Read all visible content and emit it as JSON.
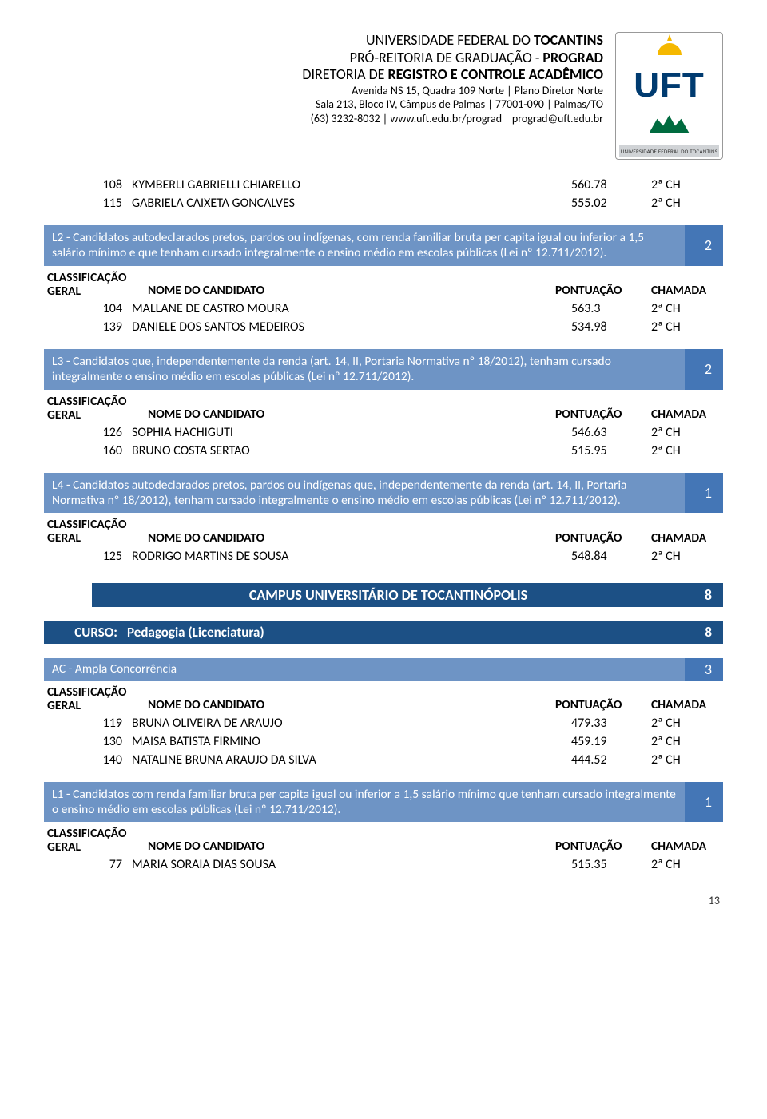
{
  "header": {
    "line1_a": "UNIVERSIDADE FEDERAL DO ",
    "line1_b": "TOCANTINS",
    "line2_a": "PRÓ-REITORIA DE GRADUAÇÃO - ",
    "line2_b": "PROGRAD",
    "line3_a": "DIRETORIA DE ",
    "line3_b": "REGISTRO E CONTROLE ACADÊMICO",
    "addr1": "Avenida NS 15, Quadra 109 Norte | Plano Diretor Norte",
    "addr2": "Sala 213, Bloco IV, Câmpus de Palmas | 77001-090 | Palmas/TO",
    "addr3": "(63) 3232-8032 | www.uft.edu.br/prograd | prograd@uft.edu.br",
    "logo_text": "UFT",
    "logo_footer": "UNIVERSIDADE FEDERAL DO TOCANTINS"
  },
  "columns": {
    "classificacao": "CLASSIFICAÇÃO",
    "geral": "GERAL",
    "nome": "NOME DO CANDIDATO",
    "pontuacao": "PONTUAÇÃO",
    "chamada": "CHAMADA"
  },
  "top_rows": [
    {
      "rank": "108",
      "name": "KYMBERLI GABRIELLI CHIARELLO",
      "score": "560.78",
      "call": "2ª CH"
    },
    {
      "rank": "115",
      "name": "GABRIELA CAIXETA GONCALVES",
      "score": "555.02",
      "call": "2ª CH"
    }
  ],
  "sections": [
    {
      "label": "L2 - Candidatos autodeclarados pretos, pardos ou indígenas, com renda familiar bruta per capita igual ou inferior a 1,5 salário mínimo e que tenham cursado integralmente o ensino médio em escolas públicas (Lei nº 12.711/2012).",
      "count": "2",
      "rows": [
        {
          "rank": "104",
          "name": "MALLANE DE CASTRO MOURA",
          "score": "563.3",
          "call": "2ª CH"
        },
        {
          "rank": "139",
          "name": "DANIELE DOS SANTOS MEDEIROS",
          "score": "534.98",
          "call": "2ª CH"
        }
      ]
    },
    {
      "label": "L3 - Candidatos que, independentemente da renda (art. 14, II, Portaria Normativa nº 18/2012), tenham cursado integralmente o ensino médio em escolas públicas (Lei nº 12.711/2012).",
      "count": "2",
      "rows": [
        {
          "rank": "126",
          "name": "SOPHIA HACHIGUTI",
          "score": "546.63",
          "call": "2ª CH"
        },
        {
          "rank": "160",
          "name": "BRUNO COSTA SERTAO",
          "score": "515.95",
          "call": "2ª CH"
        }
      ]
    },
    {
      "label": "L4 - Candidatos autodeclarados pretos, pardos ou indígenas que, independentemente da renda (art. 14, II, Portaria Normativa nº 18/2012), tenham cursado integralmente o ensino médio em escolas públicas (Lei nº 12.711/2012).",
      "count": "1",
      "rows": [
        {
          "rank": "125",
          "name": "RODRIGO MARTINS DE SOUSA",
          "score": "548.84",
          "call": "2ª CH"
        }
      ]
    }
  ],
  "campus": {
    "title": "CAMPUS UNIVERSITÁRIO DE TOCANTINÓPOLIS",
    "count": "8"
  },
  "curso": {
    "label": "CURSO:",
    "name": "Pedagogia (Licenciatura)",
    "count": "8"
  },
  "ac": {
    "label": "AC - Ampla Concorrência",
    "count": "3",
    "rows": [
      {
        "rank": "119",
        "name": "BRUNA OLIVEIRA DE ARAUJO",
        "score": "479.33",
        "call": "2ª CH"
      },
      {
        "rank": "130",
        "name": "MAISA BATISTA FIRMINO",
        "score": "459.19",
        "call": "2ª CH"
      },
      {
        "rank": "140",
        "name": "NATALINE BRUNA ARAUJO DA SILVA",
        "score": "444.52",
        "call": "2ª CH"
      }
    ]
  },
  "l1": {
    "label": "L1 - Candidatos com renda familiar bruta per capita igual ou inferior a 1,5 salário mínimo que tenham cursado integralmente o ensino médio em escolas públicas (Lei nº 12.711/2012).",
    "count": "1",
    "rows": [
      {
        "rank": "77",
        "name": "MARIA SORAIA DIAS SOUSA",
        "score": "515.35",
        "call": "2ª CH"
      }
    ]
  },
  "page_number": "13",
  "colors": {
    "cat_light": "#6e94c5",
    "cat_dark": "#4476b6",
    "bar_dark": "#1c5085"
  }
}
